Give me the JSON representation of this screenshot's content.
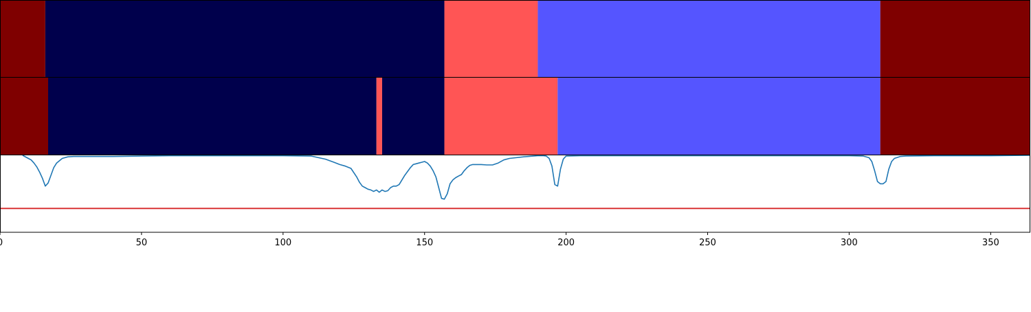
{
  "chart_data": [
    {
      "type": "heatmap",
      "xlim": [
        0,
        364
      ],
      "segments": [
        {
          "start": 0,
          "end": 16,
          "color": "#7f0000"
        },
        {
          "start": 16,
          "end": 157,
          "color": "#00004c"
        },
        {
          "start": 157,
          "end": 190,
          "color": "#ff5555"
        },
        {
          "start": 190,
          "end": 311,
          "color": "#5555ff"
        },
        {
          "start": 311,
          "end": 364,
          "color": "#7f0000"
        }
      ]
    },
    {
      "type": "heatmap",
      "xlim": [
        0,
        364
      ],
      "segments": [
        {
          "start": 0,
          "end": 17,
          "color": "#7f0000"
        },
        {
          "start": 17,
          "end": 133,
          "color": "#00004c"
        },
        {
          "start": 133,
          "end": 135,
          "color": "#ff5555"
        },
        {
          "start": 135,
          "end": 157,
          "color": "#00004c"
        },
        {
          "start": 157,
          "end": 197,
          "color": "#ff5555"
        },
        {
          "start": 197,
          "end": 311,
          "color": "#5555ff"
        },
        {
          "start": 311,
          "end": 364,
          "color": "#7f0000"
        }
      ]
    },
    {
      "type": "line",
      "xlim": [
        0,
        364
      ],
      "ylim": [
        0,
        1
      ],
      "xticks": [
        0,
        50,
        100,
        150,
        200,
        250,
        300,
        350
      ],
      "tick_labels": [
        "0",
        "50",
        "100",
        "150",
        "200",
        "250",
        "300",
        "350"
      ],
      "series": [
        {
          "color": "#1f77b4",
          "x": [
            8,
            10,
            11,
            12,
            13,
            14,
            15,
            16,
            17,
            18,
            19,
            20,
            22,
            24,
            26,
            30,
            40,
            50,
            60,
            80,
            100,
            110,
            115,
            118,
            120,
            122,
            124,
            126,
            127,
            128,
            129,
            130,
            131,
            132,
            133,
            134,
            135,
            136,
            137,
            138,
            139,
            140,
            141,
            142,
            143,
            144,
            145,
            146,
            147,
            148,
            149,
            150,
            151,
            152,
            153,
            154,
            155,
            156,
            157,
            158,
            159,
            160,
            161,
            162,
            163,
            164,
            165,
            166,
            167,
            168,
            170,
            172,
            174,
            176,
            178,
            180,
            185,
            190,
            192,
            193,
            194,
            195,
            196,
            197,
            198,
            199,
            200,
            205,
            220,
            250,
            280,
            300,
            305,
            307,
            308,
            309,
            310,
            311,
            312,
            313,
            314,
            315,
            316,
            318,
            320,
            330,
            340,
            350,
            364
          ],
          "y": [
            1.0,
            0.96,
            0.94,
            0.9,
            0.85,
            0.78,
            0.7,
            0.6,
            0.64,
            0.74,
            0.84,
            0.9,
            0.96,
            0.98,
            0.985,
            0.985,
            0.985,
            0.99,
            0.995,
            0.995,
            0.995,
            0.99,
            0.95,
            0.91,
            0.88,
            0.86,
            0.83,
            0.72,
            0.65,
            0.6,
            0.58,
            0.56,
            0.55,
            0.53,
            0.55,
            0.52,
            0.55,
            0.53,
            0.54,
            0.58,
            0.6,
            0.6,
            0.62,
            0.68,
            0.74,
            0.79,
            0.84,
            0.88,
            0.89,
            0.9,
            0.91,
            0.92,
            0.9,
            0.86,
            0.8,
            0.72,
            0.58,
            0.44,
            0.43,
            0.5,
            0.63,
            0.68,
            0.71,
            0.73,
            0.75,
            0.8,
            0.84,
            0.87,
            0.88,
            0.88,
            0.88,
            0.875,
            0.875,
            0.9,
            0.94,
            0.96,
            0.98,
            0.995,
            0.995,
            0.99,
            0.96,
            0.86,
            0.62,
            0.6,
            0.82,
            0.95,
            0.99,
            0.995,
            0.995,
            0.995,
            0.995,
            0.995,
            0.99,
            0.97,
            0.92,
            0.8,
            0.66,
            0.63,
            0.63,
            0.66,
            0.82,
            0.92,
            0.96,
            0.985,
            0.99,
            0.995,
            0.995,
            0.995,
            1.0
          ]
        },
        {
          "color": "#d62728",
          "x": [
            0,
            364
          ],
          "y": [
            0.31,
            0.31
          ]
        }
      ]
    }
  ]
}
